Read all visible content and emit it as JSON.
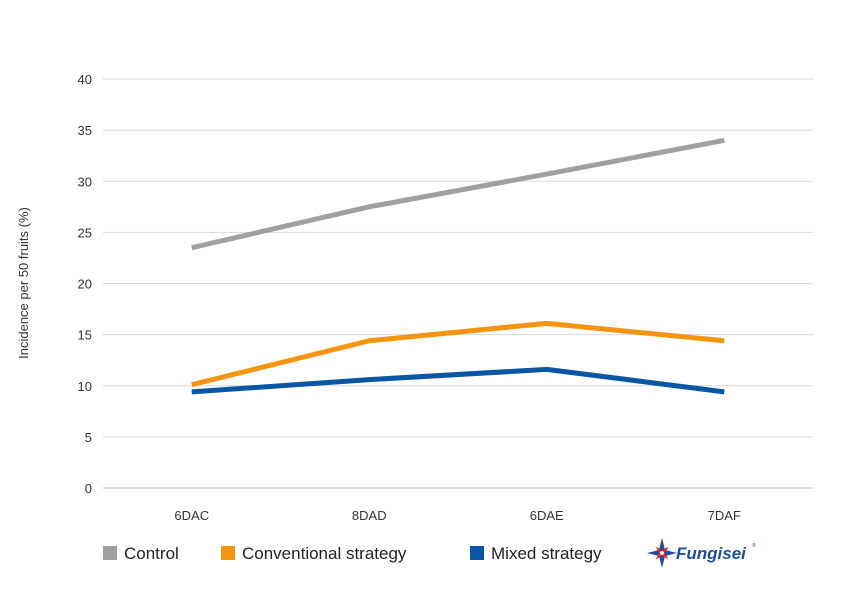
{
  "chart_data": {
    "type": "line",
    "categories": [
      "6DAC",
      "8DAD",
      "6DAE",
      "7DAF"
    ],
    "ylabel": "Incidence per 50 fruits (%)",
    "ylim": [
      0,
      40
    ],
    "yticks": [
      0,
      5,
      10,
      15,
      20,
      25,
      30,
      35,
      40
    ],
    "grid": true,
    "legend_position": "bottom",
    "series": [
      {
        "name": "Control",
        "color": "#a0a0a0",
        "values": [
          23.5,
          27.5,
          30.7,
          34.0
        ]
      },
      {
        "name": "Conventional strategy",
        "color": "#f5950f",
        "values": [
          10.1,
          14.4,
          16.1,
          14.4
        ]
      },
      {
        "name": "Mixed strategy",
        "color": "#0b56a4",
        "values": [
          9.4,
          10.6,
          11.6,
          9.4
        ]
      }
    ]
  },
  "brand": {
    "name": "Fungisei",
    "tm": "®",
    "logo_icon": "compass-star-icon"
  }
}
